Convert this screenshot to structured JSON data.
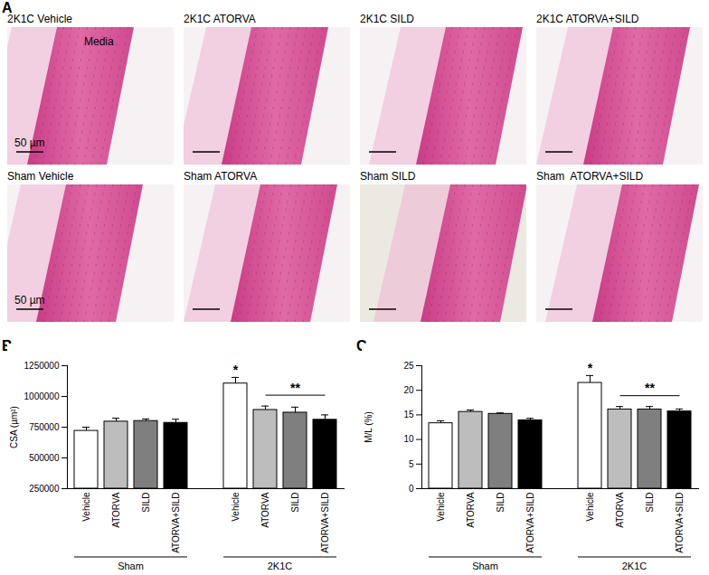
{
  "images": {
    "panel": "A",
    "panels": [
      {
        "title": "2K1C Vehicle",
        "texts": [
          "Media",
          "50 µm"
        ]
      },
      {
        "title": "2K1C ATORVA"
      },
      {
        "title": "2K1C SILD"
      },
      {
        "title": "2K1C ATORVA+SILD"
      },
      {
        "title": "Sham Vehicle",
        "texts": [
          "50 µm"
        ]
      },
      {
        "title": "Sham ATORVA"
      },
      {
        "title": "Sham SILD"
      },
      {
        "title": "Sham  ATORVA+SILD"
      }
    ]
  },
  "chart_data": [
    {
      "type": "bar",
      "panel": "B",
      "y_label": "CSA (µm²)",
      "categories": [
        "Vehicle",
        "ATORVA",
        "SILD",
        "ATORVA+SILD"
      ],
      "colors": [
        "#ffffff",
        "#bdbdbd",
        "#7f7f7f",
        "#000000"
      ],
      "groups": [
        {
          "name": "Sham",
          "values": [
            720000,
            795000,
            800000,
            785000
          ],
          "errors": [
            30000,
            28000,
            17000,
            30000
          ]
        },
        {
          "name": "2K1C",
          "values": [
            1105000,
            890000,
            868000,
            810000
          ],
          "errors": [
            50000,
            32000,
            45000,
            40000
          ]
        }
      ],
      "ylim": [
        250000,
        1250000
      ],
      "yticks": [
        250000,
        500000,
        750000,
        1000000,
        1250000
      ],
      "annotations": [
        {
          "text": "*",
          "group": "2K1C",
          "category": "Vehicle"
        },
        {
          "text": "**",
          "group": "2K1C",
          "from": "ATORVA",
          "to": "ATORVA+SILD"
        }
      ]
    },
    {
      "type": "bar",
      "panel": "C",
      "y_label": "M/L (%)",
      "categories": [
        "Vehicle",
        "ATORVA",
        "SILD",
        "ATORVA+SILD"
      ],
      "colors": [
        "#ffffff",
        "#bdbdbd",
        "#7f7f7f",
        "#000000"
      ],
      "groups": [
        {
          "name": "Sham",
          "values": [
            13.3,
            15.6,
            15.2,
            13.9
          ],
          "errors": [
            0.5,
            0.4,
            0.2,
            0.4
          ]
        },
        {
          "name": "2K1C",
          "values": [
            21.5,
            16.1,
            16.1,
            15.7
          ],
          "errors": [
            1.5,
            0.6,
            0.6,
            0.5
          ]
        }
      ],
      "ylim": [
        0,
        25
      ],
      "yticks": [
        0,
        5,
        10,
        15,
        20,
        25
      ],
      "annotations": [
        {
          "text": "*",
          "group": "2K1C",
          "category": "Vehicle"
        },
        {
          "text": "**",
          "group": "2K1C",
          "from": "ATORVA",
          "to": "ATORVA+SILD"
        }
      ]
    }
  ]
}
